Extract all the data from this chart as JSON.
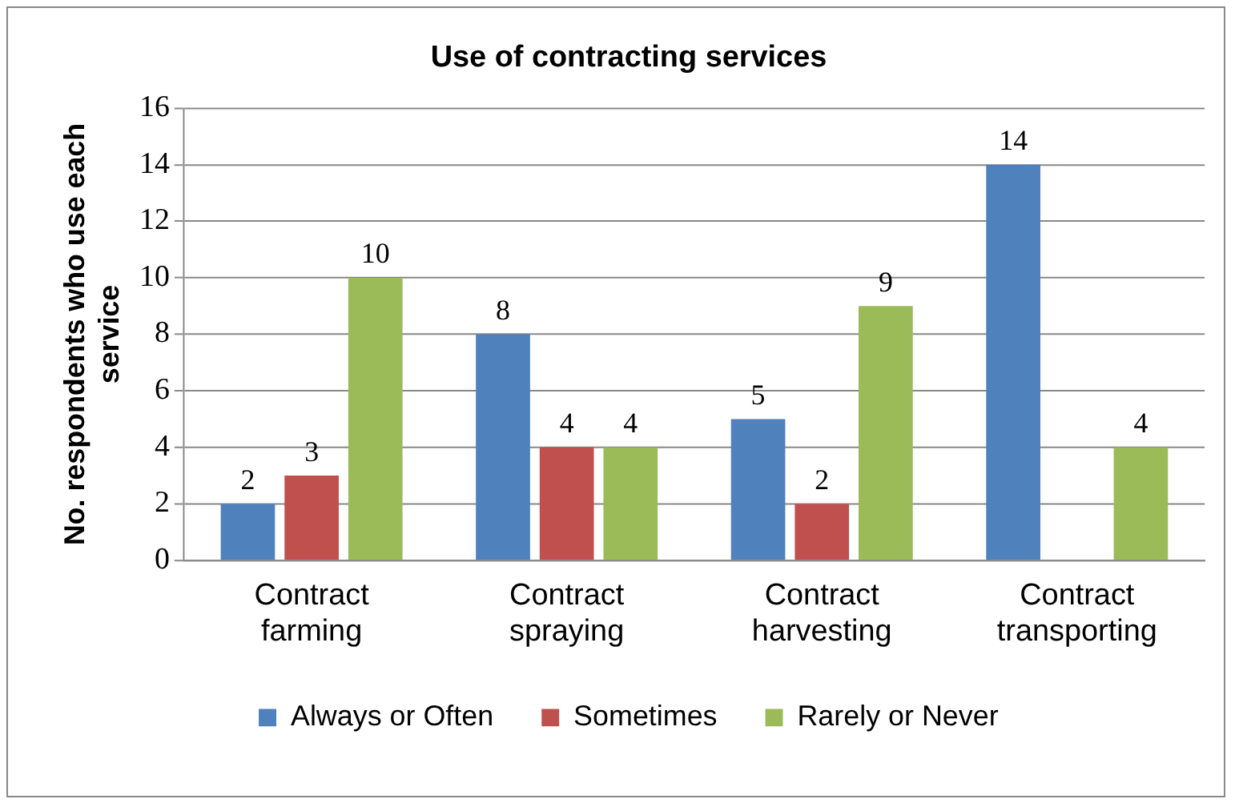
{
  "chart_data": {
    "type": "bar",
    "title": "Use of contracting services",
    "ylabel": "No. respondents who use each service",
    "categories": [
      "Contract farming",
      "Contract spraying",
      "Contract harvesting",
      "Contract transporting"
    ],
    "series": [
      {
        "name": "Always or Often",
        "color": "#4f81bd",
        "values": [
          2,
          8,
          5,
          14
        ]
      },
      {
        "name": "Sometimes",
        "color": "#c0504d",
        "values": [
          3,
          4,
          2,
          null
        ]
      },
      {
        "name": "Rarely or Never",
        "color": "#9bbb59",
        "values": [
          10,
          4,
          9,
          4
        ]
      }
    ],
    "ylim": [
      0,
      16
    ],
    "yticks": [
      0,
      2,
      4,
      6,
      8,
      10,
      12,
      14,
      16
    ],
    "grid": "y",
    "legend": "bottom",
    "data_labels": true
  }
}
